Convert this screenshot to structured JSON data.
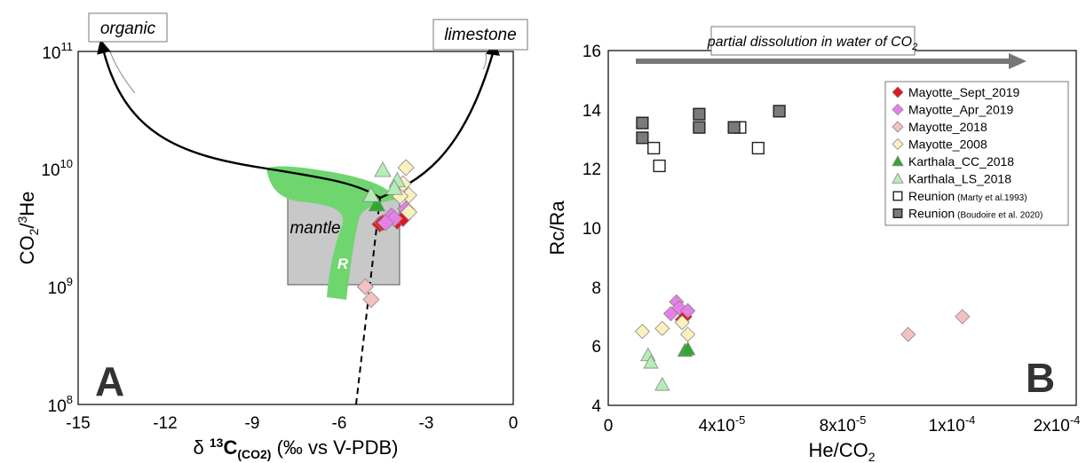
{
  "chart_data": [
    {
      "panel": "A",
      "type": "scatter",
      "xlabel": "δ 13C(CO2) (‰ vs V-PDB)",
      "ylabel": "CO2/3He",
      "xlim": [
        -15,
        0
      ],
      "ylim": [
        100000000,
        100000000000
      ],
      "yscale": "log",
      "xticks": [
        "-15",
        "-12",
        "-9",
        "-6",
        "-3",
        "0"
      ],
      "yticks": [
        "10^8",
        "10^9",
        "10^10",
        "10^11"
      ],
      "annotations": {
        "organic": "organic",
        "limestone": "limestone",
        "mantle": "mantle",
        "R": "R"
      },
      "series": [
        {
          "name": "Mayotte_Sept_2019",
          "marker": "diamond",
          "color": "#e8141c",
          "points": [
            [
              -4.6,
              3400000000.0
            ],
            [
              -4.3,
              3700000000.0
            ],
            [
              -4.0,
              3600000000.0
            ],
            [
              -3.8,
              3800000000.0
            ],
            [
              -4.5,
              3500000000.0
            ]
          ]
        },
        {
          "name": "Mayotte_Apr_2019",
          "marker": "diamond",
          "color": "#e87fe8",
          "points": [
            [
              -4.2,
              4000000000.0
            ],
            [
              -4.1,
              3800000000.0
            ],
            [
              -3.7,
              4600000000.0
            ],
            [
              -4.4,
              3500000000.0
            ]
          ]
        },
        {
          "name": "Mayotte_2018",
          "marker": "diamond",
          "color": "#f4c0c0",
          "points": [
            [
              -5.1,
              1000000000.0
            ],
            [
              -4.9,
              780000000.0
            ]
          ]
        },
        {
          "name": "Mayotte_2008",
          "marker": "diamond",
          "color": "#fbf0bf",
          "points": [
            [
              -3.7,
              10300000000.0
            ],
            [
              -3.6,
              6000000000.0
            ],
            [
              -3.9,
              5900000000.0
            ],
            [
              -3.6,
              4300000000.0
            ],
            [
              -3.8,
              7500000000.0
            ]
          ]
        },
        {
          "name": "Karthala_CC_2018",
          "marker": "triangle",
          "color": "#2eaa2e",
          "points": [
            [
              -4.7,
              5000000000.0
            ]
          ]
        },
        {
          "name": "Karthala_LS_2018",
          "marker": "triangle",
          "color": "#b6ecb6",
          "points": [
            [
              -4.5,
              9800000000.0
            ],
            [
              -4.9,
              6000000000.0
            ],
            [
              -4.0,
              8000000000.0
            ],
            [
              -4.1,
              6900000000.0
            ]
          ]
        }
      ]
    },
    {
      "panel": "B",
      "type": "scatter",
      "xlabel": "He/CO2",
      "ylabel": "Rc/Ra",
      "xlim": [
        0,
        0.0002
      ],
      "ylim": [
        4,
        16
      ],
      "xticks": [
        "0",
        "4x10-5",
        "8x10-5",
        "1x10-4",
        "2x10-4"
      ],
      "yticks": [
        "4",
        "6",
        "8",
        "10",
        "12",
        "14",
        "16"
      ],
      "annotations": {
        "arrow_label": "partial dissolution in water of CO2"
      },
      "legend": [
        {
          "label": "Mayotte_Sept_2019",
          "note": ""
        },
        {
          "label": "Mayotte_Apr_2019",
          "note": ""
        },
        {
          "label": "Mayotte_2018",
          "note": ""
        },
        {
          "label": "Mayotte_2008",
          "note": ""
        },
        {
          "label": "Karthala_CC_2018",
          "note": ""
        },
        {
          "label": "Karthala_LS_2018",
          "note": ""
        },
        {
          "label": "Reunion",
          "note": "(Marty et al.1993)"
        },
        {
          "label": "Reunion",
          "note": "(Boudoire et al. 2020)"
        }
      ],
      "series": [
        {
          "name": "Mayotte_Sept_2019",
          "marker": "diamond",
          "color": "#e8141c",
          "points": [
            [
              2.6e-05,
              6.9
            ],
            [
              2.8e-05,
              7.2
            ],
            [
              2.7e-05,
              7.0
            ]
          ]
        },
        {
          "name": "Mayotte_Apr_2019",
          "marker": "diamond",
          "color": "#e87fe8",
          "points": [
            [
              2.2e-05,
              7.1
            ],
            [
              2.4e-05,
              7.5
            ],
            [
              2.5e-05,
              7.3
            ],
            [
              2.8e-05,
              7.2
            ]
          ]
        },
        {
          "name": "Mayotte_2018",
          "marker": "diamond",
          "color": "#f4c0c0",
          "points": [
            [
              9.2e-05,
              6.4
            ],
            [
              0.00011,
              7.0
            ]
          ]
        },
        {
          "name": "Mayotte_2008",
          "marker": "diamond",
          "color": "#fbf0bf",
          "points": [
            [
              1.2e-05,
              6.5
            ],
            [
              1.9e-05,
              6.6
            ],
            [
              2.8e-05,
              6.4
            ],
            [
              2.6e-05,
              6.8
            ]
          ]
        },
        {
          "name": "Karthala_CC_2018",
          "marker": "triangle",
          "color": "#2eaa2e",
          "points": [
            [
              2.7e-05,
              5.85
            ],
            [
              2.8e-05,
              5.9
            ]
          ]
        },
        {
          "name": "Karthala_LS_2018",
          "marker": "triangle",
          "color": "#b6ecb6",
          "points": [
            [
              1.4e-05,
              5.7
            ],
            [
              1.5e-05,
              5.45
            ],
            [
              1.9e-05,
              4.7
            ]
          ]
        },
        {
          "name": "Reunion (Marty et al.1993)",
          "marker": "square",
          "color": "#ffffff",
          "points": [
            [
              1.6e-05,
              12.7
            ],
            [
              1.8e-05,
              12.1
            ],
            [
              4.6e-05,
              13.4
            ],
            [
              5.2e-05,
              12.7
            ]
          ]
        },
        {
          "name": "Reunion (Boudoire et al. 2020)",
          "marker": "square",
          "color": "#7a7a7a",
          "points": [
            [
              1.2e-05,
              13.55
            ],
            [
              1.2e-05,
              13.05
            ],
            [
              3.2e-05,
              13.85
            ],
            [
              3.2e-05,
              13.4
            ],
            [
              4.4e-05,
              13.4
            ],
            [
              5.9e-05,
              13.95
            ]
          ]
        }
      ]
    }
  ]
}
